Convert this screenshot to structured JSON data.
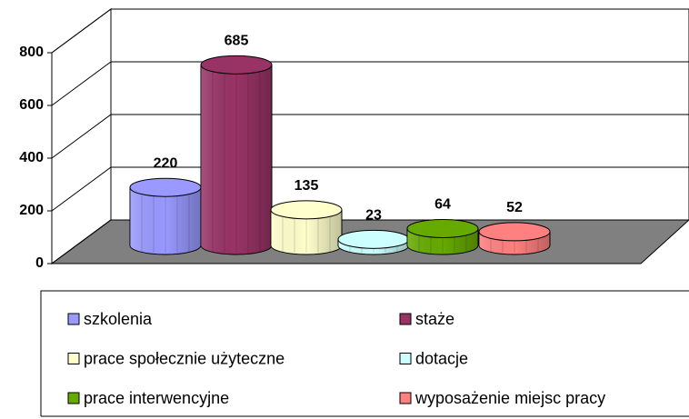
{
  "chart_data": {
    "type": "bar3d",
    "series": [
      {
        "name": "szkolenia",
        "color": "#9999ff",
        "values": [
          220
        ]
      },
      {
        "name": "staże",
        "color": "#993366",
        "values": [
          685
        ]
      },
      {
        "name": "prace społecznie użyteczne",
        "color": "#ffffcc",
        "values": [
          135
        ]
      },
      {
        "name": "dotacje",
        "color": "#ccffff",
        "values": [
          23
        ]
      },
      {
        "name": "prace interwencyjne",
        "color": "#66aa00",
        "values": [
          64
        ]
      },
      {
        "name": "wyposażenie miejsc pracy",
        "color": "#ff8080",
        "values": [
          52
        ]
      }
    ],
    "ylim": [
      0,
      800
    ],
    "yticks": [
      0,
      200,
      400,
      600,
      800
    ],
    "grid": true
  }
}
